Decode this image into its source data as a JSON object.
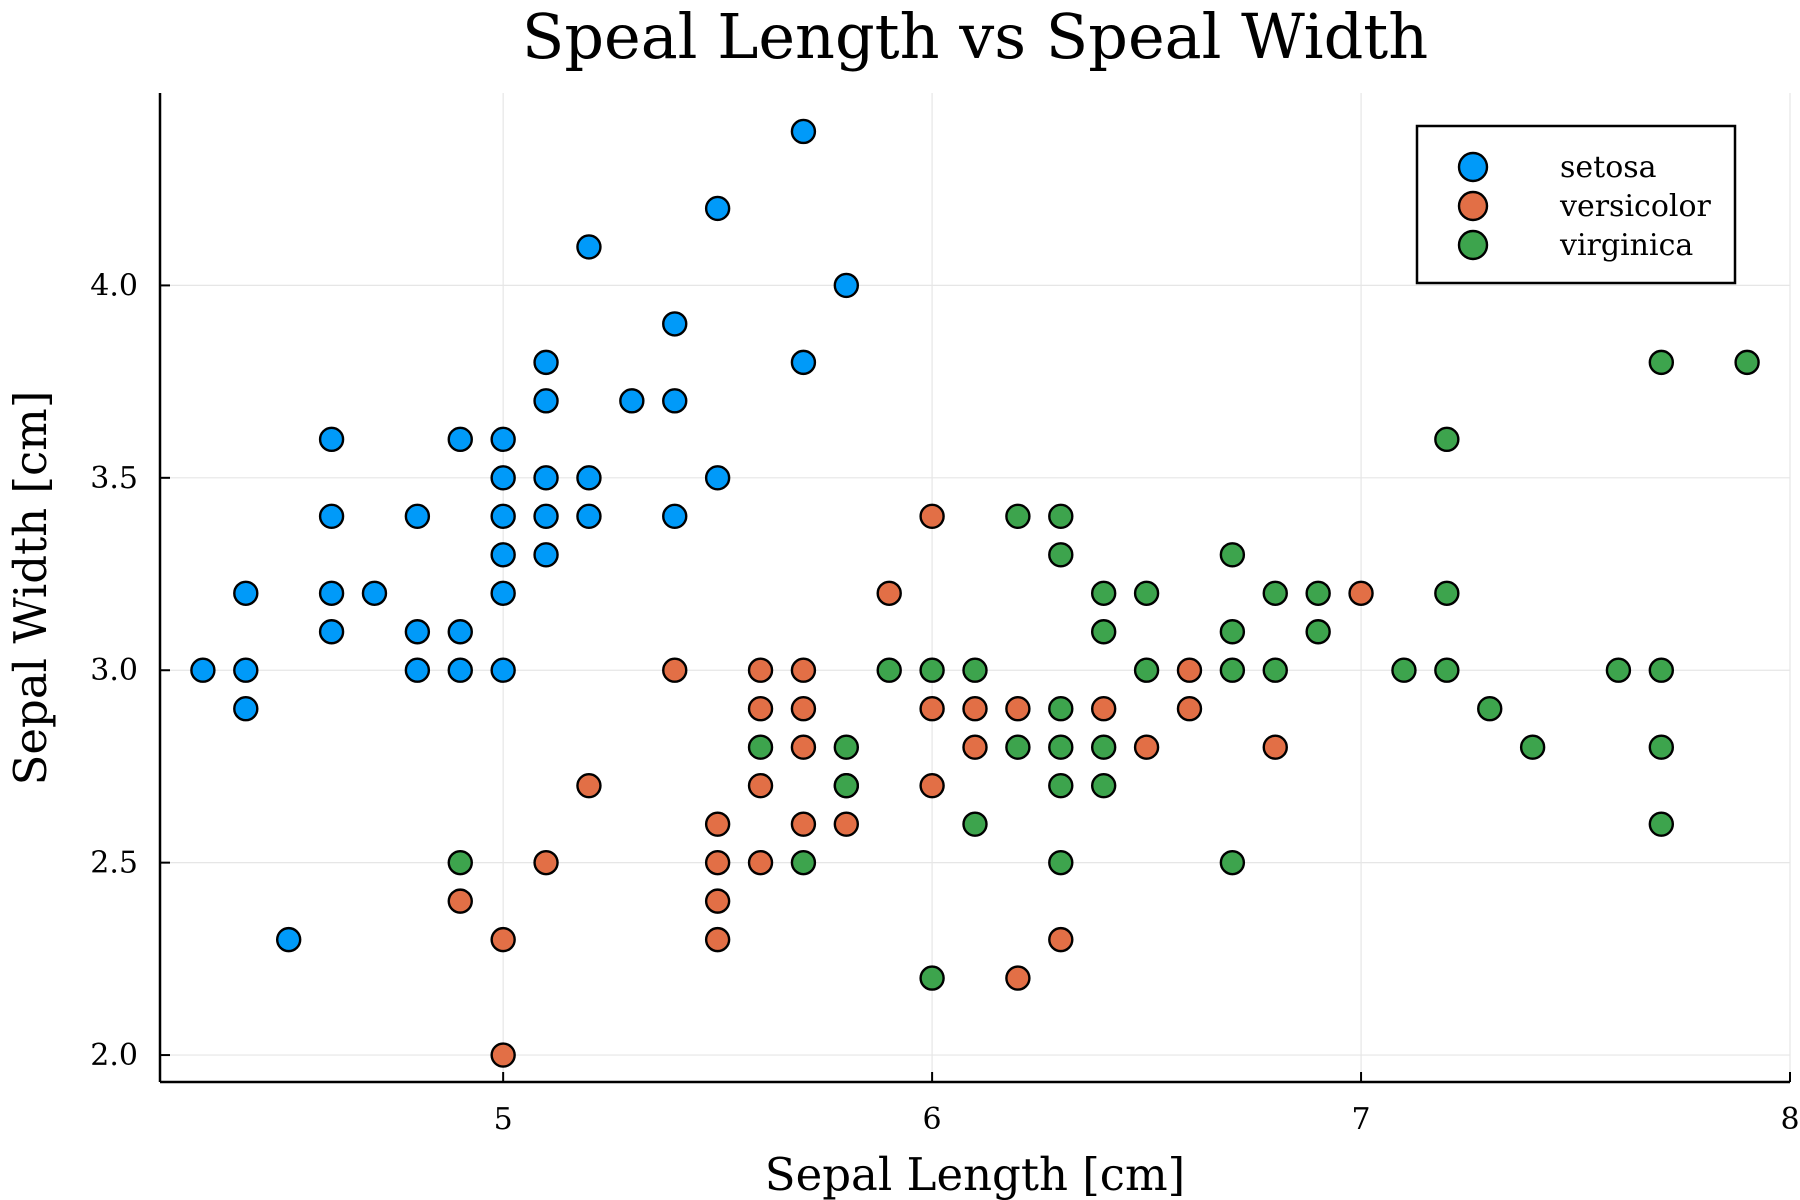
{
  "chart_data": {
    "type": "scatter",
    "title": "Speal Length vs Speal Width",
    "xlabel": "Sepal Length [cm]",
    "ylabel": "Sepal Width [cm]",
    "xlim": [
      4.2,
      8.0
    ],
    "ylim": [
      1.93,
      4.5
    ],
    "xticks": [
      5,
      6,
      7,
      8
    ],
    "xtick_labels": [
      "5",
      "6",
      "7",
      "8"
    ],
    "yticks": [
      2.0,
      2.5,
      3.0,
      3.5,
      4.0
    ],
    "ytick_labels": [
      "2.0",
      "2.5",
      "3.0",
      "3.5",
      "4.0"
    ],
    "grid": true,
    "legend_position": "top-right",
    "series": [
      {
        "name": "setosa",
        "color": "#009af9",
        "points": [
          [
            4.3,
            3.0
          ],
          [
            4.4,
            3.2
          ],
          [
            4.4,
            3.0
          ],
          [
            4.4,
            2.9
          ],
          [
            4.5,
            2.3
          ],
          [
            4.6,
            3.6
          ],
          [
            4.6,
            3.4
          ],
          [
            4.6,
            3.2
          ],
          [
            4.6,
            3.1
          ],
          [
            4.7,
            3.2
          ],
          [
            4.8,
            3.4
          ],
          [
            4.8,
            3.1
          ],
          [
            4.8,
            3.0
          ],
          [
            4.9,
            3.6
          ],
          [
            4.9,
            3.1
          ],
          [
            4.9,
            3.0
          ],
          [
            5.0,
            3.6
          ],
          [
            5.0,
            3.5
          ],
          [
            5.0,
            3.4
          ],
          [
            5.0,
            3.3
          ],
          [
            5.0,
            3.2
          ],
          [
            5.0,
            3.0
          ],
          [
            5.1,
            3.8
          ],
          [
            5.1,
            3.7
          ],
          [
            5.1,
            3.5
          ],
          [
            5.1,
            3.4
          ],
          [
            5.1,
            3.3
          ],
          [
            5.2,
            4.1
          ],
          [
            5.2,
            3.5
          ],
          [
            5.2,
            3.4
          ],
          [
            5.3,
            3.7
          ],
          [
            5.4,
            3.9
          ],
          [
            5.4,
            3.7
          ],
          [
            5.4,
            3.4
          ],
          [
            5.5,
            4.2
          ],
          [
            5.5,
            3.5
          ],
          [
            5.7,
            4.4
          ],
          [
            5.7,
            3.8
          ],
          [
            5.8,
            4.0
          ]
        ]
      },
      {
        "name": "versicolor",
        "color": "#e26f46",
        "points": [
          [
            4.9,
            2.4
          ],
          [
            5.0,
            2.3
          ],
          [
            5.0,
            2.0
          ],
          [
            5.1,
            2.5
          ],
          [
            5.2,
            2.7
          ],
          [
            5.4,
            3.0
          ],
          [
            5.5,
            2.6
          ],
          [
            5.5,
            2.5
          ],
          [
            5.5,
            2.4
          ],
          [
            5.5,
            2.3
          ],
          [
            5.6,
            3.0
          ],
          [
            5.6,
            2.9
          ],
          [
            5.6,
            2.7
          ],
          [
            5.6,
            2.5
          ],
          [
            5.7,
            3.0
          ],
          [
            5.7,
            2.9
          ],
          [
            5.7,
            2.8
          ],
          [
            5.7,
            2.6
          ],
          [
            5.8,
            2.7
          ],
          [
            5.8,
            2.6
          ],
          [
            5.9,
            3.2
          ],
          [
            6.0,
            3.4
          ],
          [
            6.0,
            2.9
          ],
          [
            6.0,
            2.7
          ],
          [
            6.1,
            2.9
          ],
          [
            6.1,
            2.8
          ],
          [
            6.2,
            2.9
          ],
          [
            6.2,
            2.2
          ],
          [
            6.3,
            2.3
          ],
          [
            6.4,
            2.9
          ],
          [
            6.5,
            2.8
          ],
          [
            6.6,
            3.0
          ],
          [
            6.6,
            2.9
          ],
          [
            6.8,
            2.8
          ],
          [
            7.0,
            3.2
          ]
        ]
      },
      {
        "name": "virginica",
        "color": "#3da44d",
        "points": [
          [
            4.9,
            2.5
          ],
          [
            5.6,
            2.8
          ],
          [
            5.7,
            2.5
          ],
          [
            5.8,
            2.8
          ],
          [
            5.8,
            2.7
          ],
          [
            5.9,
            3.0
          ],
          [
            6.0,
            3.0
          ],
          [
            6.0,
            2.2
          ],
          [
            6.1,
            3.0
          ],
          [
            6.1,
            2.6
          ],
          [
            6.2,
            3.4
          ],
          [
            6.2,
            2.8
          ],
          [
            6.3,
            3.4
          ],
          [
            6.3,
            3.3
          ],
          [
            6.3,
            2.9
          ],
          [
            6.3,
            2.8
          ],
          [
            6.3,
            2.7
          ],
          [
            6.3,
            2.5
          ],
          [
            6.4,
            3.2
          ],
          [
            6.4,
            3.1
          ],
          [
            6.4,
            2.8
          ],
          [
            6.4,
            2.7
          ],
          [
            6.5,
            3.2
          ],
          [
            6.5,
            3.0
          ],
          [
            6.7,
            3.3
          ],
          [
            6.7,
            3.1
          ],
          [
            6.7,
            3.0
          ],
          [
            6.7,
            2.5
          ],
          [
            6.8,
            3.2
          ],
          [
            6.8,
            3.0
          ],
          [
            6.9,
            3.2
          ],
          [
            6.9,
            3.1
          ],
          [
            7.1,
            3.0
          ],
          [
            7.2,
            3.6
          ],
          [
            7.2,
            3.2
          ],
          [
            7.2,
            3.0
          ],
          [
            7.3,
            2.9
          ],
          [
            7.4,
            2.8
          ],
          [
            7.6,
            3.0
          ],
          [
            7.7,
            3.8
          ],
          [
            7.7,
            3.0
          ],
          [
            7.7,
            2.8
          ],
          [
            7.7,
            2.6
          ],
          [
            7.9,
            3.8
          ]
        ]
      }
    ]
  }
}
